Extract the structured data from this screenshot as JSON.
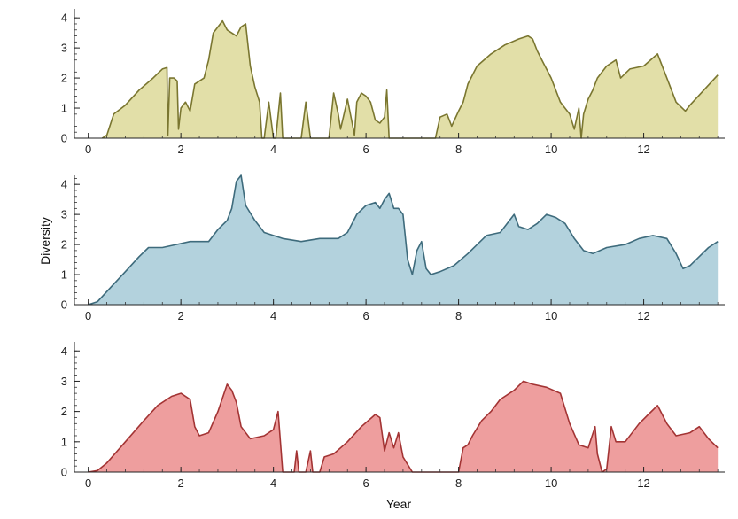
{
  "figure": {
    "ylabel": "Diversity",
    "xlabel": "Year"
  },
  "chart_data": [
    {
      "type": "area",
      "name": "",
      "color_fill": "#e2dfa8",
      "color_line": "#7a7630",
      "xlim": [
        -0.3,
        13.75
      ],
      "ylim": [
        0,
        4.3
      ],
      "xticks": [
        0,
        2,
        4,
        6,
        8,
        10,
        12
      ],
      "yticks": [
        0,
        1,
        2,
        3,
        4
      ],
      "grid": false,
      "points": [
        [
          0.3,
          0
        ],
        [
          0.4,
          0.1
        ],
        [
          0.55,
          0.8
        ],
        [
          0.8,
          1.1
        ],
        [
          1.1,
          1.6
        ],
        [
          1.4,
          2.0
        ],
        [
          1.6,
          2.3
        ],
        [
          1.7,
          2.35
        ],
        [
          1.72,
          0.1
        ],
        [
          1.76,
          2.0
        ],
        [
          1.85,
          2.0
        ],
        [
          1.92,
          1.9
        ],
        [
          1.95,
          0.3
        ],
        [
          2.0,
          1.0
        ],
        [
          2.1,
          1.2
        ],
        [
          2.2,
          0.9
        ],
        [
          2.3,
          1.8
        ],
        [
          2.5,
          2.0
        ],
        [
          2.6,
          2.6
        ],
        [
          2.7,
          3.5
        ],
        [
          2.8,
          3.7
        ],
        [
          2.9,
          3.9
        ],
        [
          3.0,
          3.6
        ],
        [
          3.1,
          3.5
        ],
        [
          3.2,
          3.4
        ],
        [
          3.3,
          3.7
        ],
        [
          3.4,
          3.8
        ],
        [
          3.5,
          2.4
        ],
        [
          3.6,
          1.7
        ],
        [
          3.7,
          1.2
        ],
        [
          3.75,
          0
        ],
        [
          3.8,
          0
        ],
        [
          3.9,
          1.2
        ],
        [
          4.0,
          0
        ],
        [
          4.05,
          0
        ],
        [
          4.15,
          1.5
        ],
        [
          4.2,
          0
        ],
        [
          4.6,
          0
        ],
        [
          4.7,
          1.2
        ],
        [
          4.8,
          0
        ],
        [
          5.2,
          0
        ],
        [
          5.3,
          1.5
        ],
        [
          5.4,
          0.8
        ],
        [
          5.45,
          0.3
        ],
        [
          5.6,
          1.3
        ],
        [
          5.7,
          0.5
        ],
        [
          5.75,
          0.1
        ],
        [
          5.8,
          1.2
        ],
        [
          5.9,
          1.5
        ],
        [
          6.0,
          1.4
        ],
        [
          6.1,
          1.2
        ],
        [
          6.2,
          0.6
        ],
        [
          6.3,
          0.5
        ],
        [
          6.4,
          0.7
        ],
        [
          6.45,
          1.6
        ],
        [
          6.5,
          0
        ],
        [
          7.5,
          0
        ],
        [
          7.6,
          0.7
        ],
        [
          7.75,
          0.8
        ],
        [
          7.85,
          0.4
        ],
        [
          8.0,
          0.9
        ],
        [
          8.1,
          1.2
        ],
        [
          8.2,
          1.8
        ],
        [
          8.4,
          2.4
        ],
        [
          8.7,
          2.8
        ],
        [
          9.0,
          3.1
        ],
        [
          9.3,
          3.3
        ],
        [
          9.5,
          3.4
        ],
        [
          9.6,
          3.3
        ],
        [
          9.7,
          2.9
        ],
        [
          9.8,
          2.6
        ],
        [
          10.0,
          2.0
        ],
        [
          10.2,
          1.2
        ],
        [
          10.4,
          0.8
        ],
        [
          10.5,
          0.3
        ],
        [
          10.6,
          1.0
        ],
        [
          10.65,
          0
        ],
        [
          10.7,
          0.8
        ],
        [
          10.8,
          1.3
        ],
        [
          10.9,
          1.6
        ],
        [
          11.0,
          2.0
        ],
        [
          11.2,
          2.4
        ],
        [
          11.4,
          2.6
        ],
        [
          11.5,
          2.0
        ],
        [
          11.7,
          2.3
        ],
        [
          12.0,
          2.4
        ],
        [
          12.3,
          2.8
        ],
        [
          12.5,
          2.0
        ],
        [
          12.7,
          1.2
        ],
        [
          12.9,
          0.9
        ],
        [
          13.0,
          1.1
        ],
        [
          13.3,
          1.6
        ],
        [
          13.6,
          2.1
        ]
      ]
    },
    {
      "type": "area",
      "name": "",
      "color_fill": "#b3d2dd",
      "color_line": "#3e6b7c",
      "xlim": [
        -0.3,
        13.75
      ],
      "ylim": [
        0,
        4.3
      ],
      "xticks": [
        0,
        2,
        4,
        6,
        8,
        10,
        12
      ],
      "yticks": [
        0,
        1,
        2,
        3,
        4
      ],
      "grid": false,
      "points": [
        [
          0.0,
          0
        ],
        [
          0.2,
          0.1
        ],
        [
          0.5,
          0.6
        ],
        [
          0.8,
          1.1
        ],
        [
          1.1,
          1.6
        ],
        [
          1.3,
          1.9
        ],
        [
          1.6,
          1.9
        ],
        [
          1.9,
          2.0
        ],
        [
          2.2,
          2.1
        ],
        [
          2.6,
          2.1
        ],
        [
          2.8,
          2.5
        ],
        [
          3.0,
          2.8
        ],
        [
          3.1,
          3.2
        ],
        [
          3.2,
          4.1
        ],
        [
          3.3,
          4.3
        ],
        [
          3.4,
          3.3
        ],
        [
          3.6,
          2.8
        ],
        [
          3.8,
          2.4
        ],
        [
          4.2,
          2.2
        ],
        [
          4.6,
          2.1
        ],
        [
          5.0,
          2.2
        ],
        [
          5.4,
          2.2
        ],
        [
          5.6,
          2.4
        ],
        [
          5.8,
          3.0
        ],
        [
          6.0,
          3.3
        ],
        [
          6.2,
          3.4
        ],
        [
          6.3,
          3.2
        ],
        [
          6.4,
          3.5
        ],
        [
          6.5,
          3.7
        ],
        [
          6.6,
          3.2
        ],
        [
          6.7,
          3.2
        ],
        [
          6.8,
          3.0
        ],
        [
          6.9,
          1.5
        ],
        [
          7.0,
          1.0
        ],
        [
          7.1,
          1.8
        ],
        [
          7.2,
          2.1
        ],
        [
          7.3,
          1.2
        ],
        [
          7.4,
          1.0
        ],
        [
          7.6,
          1.1
        ],
        [
          7.9,
          1.3
        ],
        [
          8.2,
          1.7
        ],
        [
          8.6,
          2.3
        ],
        [
          8.9,
          2.4
        ],
        [
          9.1,
          2.8
        ],
        [
          9.2,
          3.0
        ],
        [
          9.3,
          2.6
        ],
        [
          9.5,
          2.5
        ],
        [
          9.7,
          2.7
        ],
        [
          9.9,
          3.0
        ],
        [
          10.1,
          2.9
        ],
        [
          10.3,
          2.7
        ],
        [
          10.5,
          2.2
        ],
        [
          10.7,
          1.8
        ],
        [
          10.9,
          1.7
        ],
        [
          11.2,
          1.9
        ],
        [
          11.6,
          2.0
        ],
        [
          11.9,
          2.2
        ],
        [
          12.2,
          2.3
        ],
        [
          12.5,
          2.2
        ],
        [
          12.7,
          1.7
        ],
        [
          12.85,
          1.2
        ],
        [
          13.0,
          1.3
        ],
        [
          13.2,
          1.6
        ],
        [
          13.4,
          1.9
        ],
        [
          13.6,
          2.1
        ]
      ]
    },
    {
      "type": "area",
      "name": "",
      "color_fill": "#ee9e9e",
      "color_line": "#a33434",
      "xlim": [
        -0.3,
        13.75
      ],
      "ylim": [
        0,
        4.3
      ],
      "xticks": [
        0,
        2,
        4,
        6,
        8,
        10,
        12
      ],
      "yticks": [
        0,
        1,
        2,
        3,
        4
      ],
      "grid": false,
      "points": [
        [
          0.0,
          0
        ],
        [
          0.2,
          0.05
        ],
        [
          0.4,
          0.3
        ],
        [
          0.8,
          1.0
        ],
        [
          1.2,
          1.7
        ],
        [
          1.5,
          2.2
        ],
        [
          1.8,
          2.5
        ],
        [
          2.0,
          2.6
        ],
        [
          2.2,
          2.4
        ],
        [
          2.3,
          1.5
        ],
        [
          2.4,
          1.2
        ],
        [
          2.6,
          1.3
        ],
        [
          2.8,
          2.0
        ],
        [
          3.0,
          2.9
        ],
        [
          3.1,
          2.7
        ],
        [
          3.2,
          2.3
        ],
        [
          3.3,
          1.5
        ],
        [
          3.5,
          1.1
        ],
        [
          3.8,
          1.2
        ],
        [
          4.0,
          1.4
        ],
        [
          4.1,
          2.0
        ],
        [
          4.2,
          0
        ],
        [
          4.45,
          0
        ],
        [
          4.5,
          0.7
        ],
        [
          4.55,
          0
        ],
        [
          4.7,
          0
        ],
        [
          4.8,
          0.7
        ],
        [
          4.85,
          0
        ],
        [
          5.0,
          0
        ],
        [
          5.1,
          0.5
        ],
        [
          5.3,
          0.6
        ],
        [
          5.6,
          1.0
        ],
        [
          5.9,
          1.5
        ],
        [
          6.2,
          1.9
        ],
        [
          6.3,
          1.8
        ],
        [
          6.4,
          0.7
        ],
        [
          6.5,
          1.3
        ],
        [
          6.6,
          0.8
        ],
        [
          6.7,
          1.3
        ],
        [
          6.8,
          0.5
        ],
        [
          7.0,
          0
        ],
        [
          8.0,
          0
        ],
        [
          8.1,
          0.8
        ],
        [
          8.2,
          0.9
        ],
        [
          8.3,
          1.2
        ],
        [
          8.5,
          1.7
        ],
        [
          8.7,
          2.0
        ],
        [
          8.9,
          2.4
        ],
        [
          9.2,
          2.7
        ],
        [
          9.4,
          3.0
        ],
        [
          9.6,
          2.9
        ],
        [
          9.9,
          2.8
        ],
        [
          10.2,
          2.6
        ],
        [
          10.4,
          1.6
        ],
        [
          10.6,
          0.9
        ],
        [
          10.8,
          0.8
        ],
        [
          10.95,
          1.5
        ],
        [
          11.0,
          0.6
        ],
        [
          11.1,
          0
        ],
        [
          11.2,
          0.1
        ],
        [
          11.3,
          1.5
        ],
        [
          11.4,
          1.0
        ],
        [
          11.6,
          1.0
        ],
        [
          11.9,
          1.6
        ],
        [
          12.1,
          1.9
        ],
        [
          12.3,
          2.2
        ],
        [
          12.5,
          1.6
        ],
        [
          12.7,
          1.2
        ],
        [
          13.0,
          1.3
        ],
        [
          13.2,
          1.5
        ],
        [
          13.4,
          1.1
        ],
        [
          13.6,
          0.8
        ]
      ]
    }
  ]
}
